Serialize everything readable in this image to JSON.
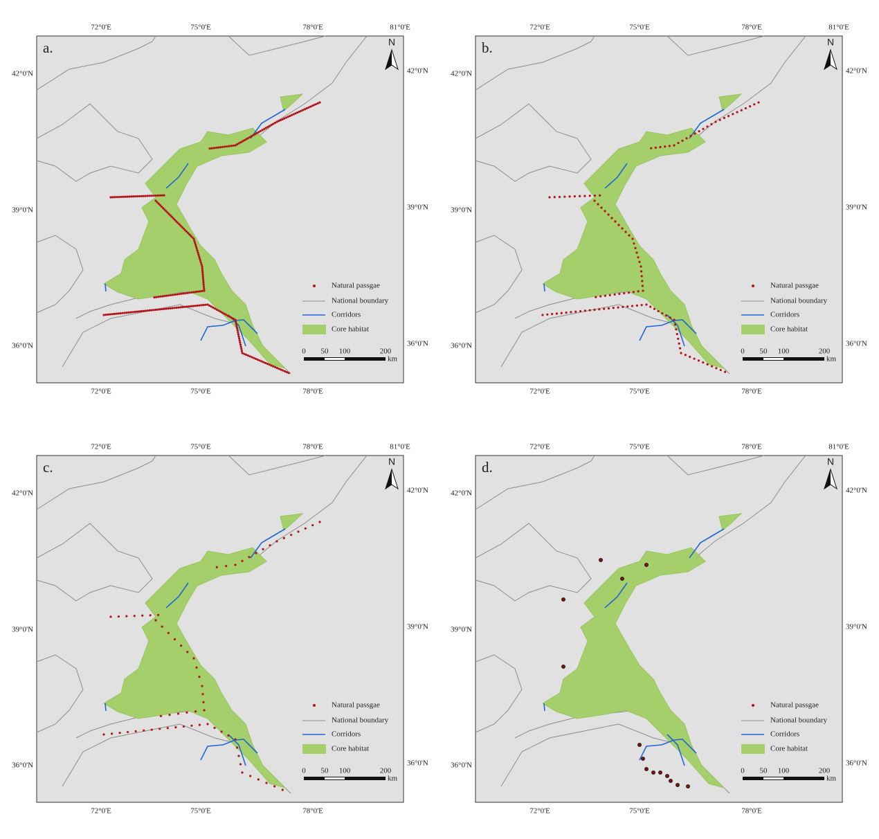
{
  "panels": [
    {
      "label": "a."
    },
    {
      "label": "b."
    },
    {
      "label": "c."
    },
    {
      "label": "d."
    }
  ],
  "longitude_top": [
    "72°0'E",
    "75°0'E",
    "78°0'E",
    "81°0'E"
  ],
  "longitude_bottom": [
    "72°0'E",
    "75°0'E",
    "78°0'E"
  ],
  "latitude": [
    "42°0'N",
    "39°0'N",
    "36°0'N"
  ],
  "legend": [
    "Natural passgae",
    "National boundary",
    "Corridors",
    "Core habitat"
  ],
  "scale_bar": {
    "labels": [
      "0",
      "50",
      "100",
      "200"
    ],
    "unit": "km"
  },
  "north_arrow": "N"
}
